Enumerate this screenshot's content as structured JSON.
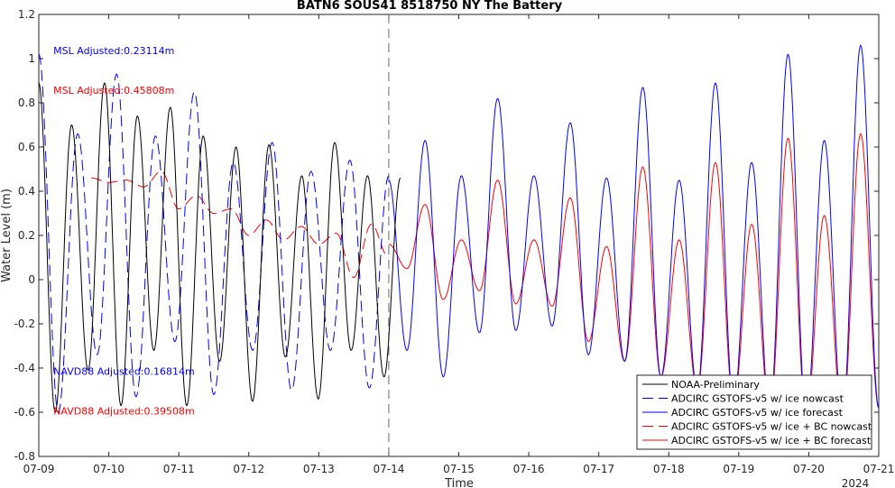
{
  "chart_data": {
    "type": "line",
    "title": "BATN6 SOUS41 8518750 NY The Battery",
    "xlabel": "Time",
    "ylabel": "Water Level (m)",
    "year_label": "2024",
    "xlim": [
      "07-09",
      "07-21"
    ],
    "ylim": [
      -0.8,
      1.2
    ],
    "x_ticks": [
      "07-09",
      "07-10",
      "07-11",
      "07-12",
      "07-13",
      "07-14",
      "07-15",
      "07-16",
      "07-17",
      "07-18",
      "07-19",
      "07-20",
      "07-21"
    ],
    "y_ticks": [
      -0.8,
      -0.6,
      -0.4,
      -0.2,
      0,
      0.2,
      0.4,
      0.6,
      0.8,
      1,
      1.2
    ],
    "y_tick_labels": [
      "-0.8",
      "-0.6",
      "-0.4",
      "-0.2",
      "0",
      "0.2",
      "0.4",
      "0.6",
      "0.8",
      "1",
      "1.2"
    ],
    "forecast_start": "07-14",
    "annotations": [
      {
        "text": "MSL Adjusted:0.23114m",
        "color": "#0000ff",
        "x": "07-09 05:00",
        "y": 1.02
      },
      {
        "text": "MSL Adjusted:0.45808m",
        "color": "#ff0000",
        "x": "07-09 05:00",
        "y": 0.84
      },
      {
        "text": "NAVD88 Adjusted:0.16814m",
        "color": "#0000ff",
        "x": "07-09 05:00",
        "y": -0.43
      },
      {
        "text": "NAVD88 Adjusted:0.39508m",
        "color": "#ff0000",
        "x": "07-09 05:00",
        "y": -0.61
      }
    ],
    "legend_position": "bottom-right",
    "series": [
      {
        "name": "NOAA-Preliminary",
        "color": "#000000",
        "dash": "solid",
        "x_start": "07-09 00:00",
        "x_end": "07-14 04:00",
        "peaks": [
          0.89,
          0.7,
          0.89,
          0.74,
          0.78,
          0.65,
          0.6,
          0.61,
          0.47,
          0.62,
          0.47,
          0.46
        ],
        "troughs": [
          -0.6,
          -0.41,
          -0.57,
          -0.32,
          -0.57,
          -0.37,
          -0.55,
          -0.35,
          -0.54,
          -0.32,
          -0.44
        ]
      },
      {
        "name": "ADCIRC GSTOFS-v5 w/ ice nowcast",
        "color": "#0000ff",
        "dash": "long-dash",
        "x_start": "07-09 00:00",
        "x_end": "07-14 00:00",
        "peaks": [
          1.02,
          0.66,
          0.93,
          0.65,
          0.85,
          0.53,
          0.62,
          0.49,
          0.54,
          0.47
        ],
        "troughs": [
          -0.6,
          -0.34,
          -0.53,
          -0.28,
          -0.52,
          -0.32,
          -0.5,
          -0.32,
          -0.49
        ]
      },
      {
        "name": "ADCIRC GSTOFS-v5 w/ ice forecast",
        "color": "#0000ff",
        "dash": "solid",
        "x_start": "07-14 00:00",
        "x_end": "07-21 00:00",
        "peaks": [
          0.45,
          0.63,
          0.47,
          0.82,
          0.47,
          0.71,
          0.46,
          0.87,
          0.45,
          0.89,
          0.53,
          1.02,
          0.63,
          1.06
        ],
        "troughs": [
          -0.32,
          -0.44,
          -0.24,
          -0.23,
          -0.21,
          -0.34,
          -0.37,
          -0.44,
          -0.5,
          -0.56,
          -0.6,
          -0.62,
          -0.63,
          -0.58
        ]
      },
      {
        "name": "ADCIRC GSTOFS-v5 w/ ice + BC nowcast",
        "color": "#ff0000",
        "dash": "long-dash",
        "x_start": "07-09 18:00",
        "x_end": "07-14 00:00",
        "peaks": [
          0.46,
          0.45,
          0.49,
          0.38,
          0.32,
          0.27,
          0.24,
          0.21,
          0.25
        ],
        "troughs": [
          0.44,
          0.42,
          0.32,
          0.3,
          0.2,
          0.18,
          0.16,
          0.01,
          0.1
        ]
      },
      {
        "name": "ADCIRC GSTOFS-v5 w/ ice + BC forecast",
        "color": "#ff0000",
        "dash": "solid",
        "x_start": "07-14 00:00",
        "x_end": "07-21 00:00",
        "peaks": [
          0.16,
          0.34,
          0.18,
          0.45,
          0.18,
          0.37,
          0.15,
          0.51,
          0.18,
          0.53,
          0.25,
          0.64,
          0.29,
          0.66
        ],
        "troughs": [
          0.05,
          -0.09,
          -0.05,
          -0.11,
          -0.12,
          -0.28,
          -0.37,
          -0.44,
          -0.5,
          -0.56,
          -0.6,
          -0.62,
          -0.63,
          -0.58
        ]
      }
    ]
  }
}
